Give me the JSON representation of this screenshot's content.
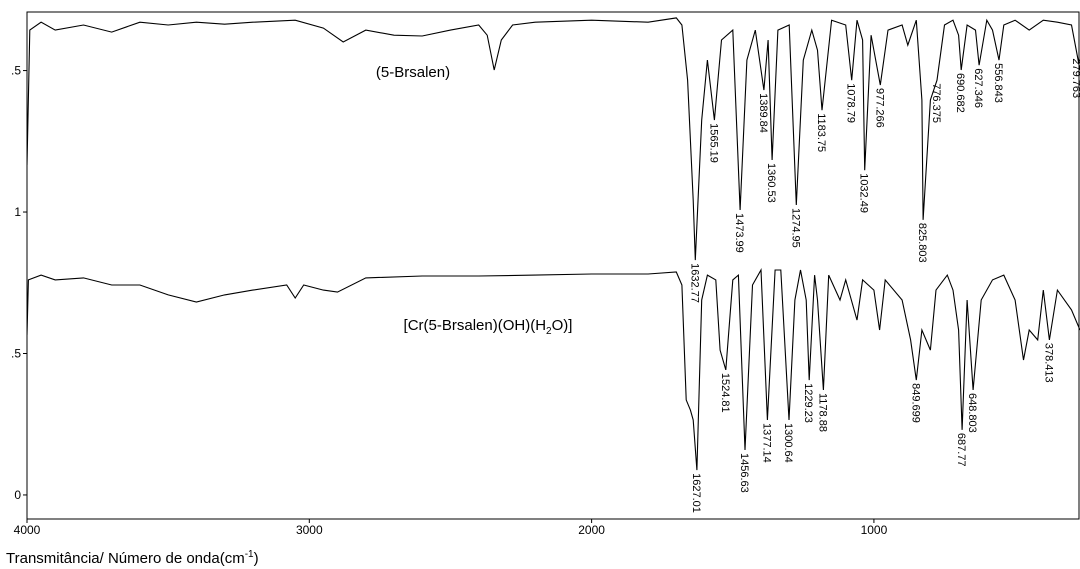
{
  "chart_data": {
    "type": "line",
    "xlim": [
      4000,
      270
    ],
    "xticks": [
      4000,
      3000,
      2000,
      1000
    ],
    "ylim": [
      -0.085,
      1.707
    ],
    "yticks": [
      0,
      {
        "value": 0.5,
        "label": ".5"
      },
      1,
      {
        "value": 1.5,
        "label": ".5"
      }
    ],
    "x_label": [
      "Transmitância/ Número de onda(cm",
      "-1",
      ")"
    ],
    "series": [
      {
        "label": [
          "(5-Brsalen)"
        ],
        "color": "#000000",
        "x": [
          4000,
          3990,
          3950,
          3900,
          3800,
          3700,
          3600,
          3500,
          3400,
          3300,
          3200,
          3050,
          2950,
          2880,
          2800,
          2700,
          2600,
          2500,
          2400,
          2370,
          2345,
          2320,
          2280,
          2200,
          2000,
          1800,
          1700,
          1680,
          1660,
          1640,
          1632.77,
          1610,
          1590,
          1565.19,
          1540,
          1500,
          1473.99,
          1450,
          1420,
          1389.84,
          1375,
          1360.53,
          1340,
          1300,
          1274.95,
          1250,
          1220,
          1200,
          1183.75,
          1150,
          1100,
          1078.79,
          1060,
          1040,
          1032.49,
          1010,
          977.266,
          950,
          900,
          880,
          850,
          830,
          825.803,
          800,
          776.375,
          750,
          720,
          700,
          690.682,
          670,
          640,
          627.346,
          600,
          580,
          556.843,
          540,
          500,
          450,
          400,
          350,
          300,
          270
        ],
        "values": [
          1.166,
          1.643,
          1.671,
          1.643,
          1.661,
          1.636,
          1.671,
          1.661,
          1.671,
          1.664,
          1.671,
          1.678,
          1.65,
          1.601,
          1.643,
          1.625,
          1.622,
          1.643,
          1.661,
          1.625,
          1.502,
          1.608,
          1.661,
          1.671,
          1.678,
          1.671,
          1.686,
          1.661,
          1.466,
          1.042,
          0.83,
          1.325,
          1.537,
          1.325,
          1.608,
          1.643,
          1.007,
          1.537,
          1.643,
          1.431,
          1.608,
          1.184,
          1.643,
          1.661,
          1.025,
          1.537,
          1.643,
          1.572,
          1.36,
          1.678,
          1.661,
          1.466,
          1.678,
          1.608,
          1.148,
          1.625,
          1.449,
          1.643,
          1.661,
          1.59,
          1.678,
          1.396,
          0.972,
          1.396,
          1.466,
          1.661,
          1.678,
          1.625,
          1.502,
          1.661,
          1.643,
          1.519,
          1.678,
          1.643,
          1.537,
          1.661,
          1.678,
          1.643,
          1.678,
          1.671,
          1.661,
          1.502
        ],
        "peaks": [
          1632.77,
          1565.19,
          1473.99,
          1389.84,
          1360.53,
          1274.95,
          1183.75,
          1078.79,
          1032.49,
          977.266,
          825.803,
          776.375,
          690.682,
          627.346,
          556.843,
          279.763
        ]
      },
      {
        "label": [
          "[Cr(5-Brsalen)(OH)(H",
          "2",
          "O)]"
        ],
        "color": "#000000",
        "x": [
          4000,
          3995,
          3950,
          3900,
          3800,
          3700,
          3600,
          3500,
          3400,
          3300,
          3200,
          3080,
          3050,
          3020,
          2950,
          2900,
          2800,
          2600,
          2400,
          2200,
          2000,
          1800,
          1700,
          1680,
          1665,
          1650,
          1640,
          1627.01,
          1610,
          1590,
          1560,
          1545,
          1524.81,
          1500,
          1480,
          1456.63,
          1430,
          1400,
          1377.14,
          1350,
          1330,
          1300.64,
          1280,
          1260,
          1240,
          1229.23,
          1210,
          1200,
          1178.88,
          1160,
          1120,
          1100,
          1060,
          1040,
          1000,
          980,
          960,
          900,
          870,
          849.699,
          830,
          800,
          780,
          740,
          720,
          700,
          687.77,
          670,
          648.803,
          620,
          580,
          540,
          500,
          470,
          450,
          420,
          400,
          378.413,
          350,
          300,
          270
        ],
        "values": [
          0.565,
          0.76,
          0.777,
          0.76,
          0.767,
          0.742,
          0.742,
          0.707,
          0.682,
          0.707,
          0.724,
          0.742,
          0.696,
          0.742,
          0.724,
          0.717,
          0.767,
          0.774,
          0.774,
          0.777,
          0.781,
          0.781,
          0.788,
          0.742,
          0.336,
          0.3,
          0.265,
          0.088,
          0.689,
          0.777,
          0.76,
          0.512,
          0.442,
          0.76,
          0.777,
          0.159,
          0.742,
          0.795,
          0.265,
          0.795,
          0.795,
          0.265,
          0.689,
          0.795,
          0.689,
          0.406,
          0.777,
          0.689,
          0.371,
          0.777,
          0.689,
          0.76,
          0.618,
          0.76,
          0.724,
          0.583,
          0.76,
          0.689,
          0.548,
          0.406,
          0.583,
          0.512,
          0.724,
          0.777,
          0.724,
          0.583,
          0.23,
          0.689,
          0.371,
          0.689,
          0.76,
          0.777,
          0.689,
          0.477,
          0.583,
          0.548,
          0.724,
          0.548,
          0.724,
          0.654,
          0.583
        ],
        "peaks": [
          1627.01,
          1524.81,
          1456.63,
          1377.14,
          1300.64,
          1229.23,
          1178.88,
          849.699,
          687.77,
          648.803,
          378.413
        ]
      }
    ]
  }
}
